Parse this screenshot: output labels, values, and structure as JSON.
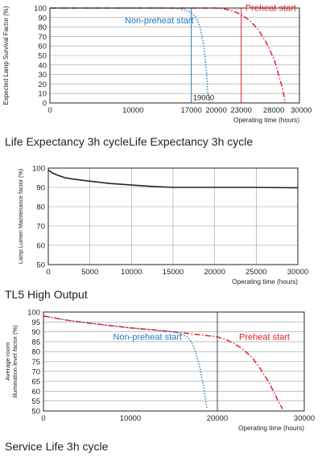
{
  "captions": [
    "Life Expectancy 3h cycleLife Expectancy 3h cycle",
    "TL5 High Output",
    "Service Life 3h cycle"
  ],
  "chart_data": [
    {
      "type": "line",
      "ylabel": "Expected Lamp Survival Factor (%)",
      "xlabel": "Operating time (hours)",
      "xlim": [
        0,
        30000
      ],
      "ylim": [
        0,
        100
      ],
      "xticks": [
        0,
        10000,
        17000,
        20000,
        23000,
        28000,
        30000
      ],
      "yticks": [
        0,
        10,
        20,
        30,
        40,
        50,
        60,
        70,
        80,
        90,
        100
      ],
      "grid": "y",
      "series": [
        {
          "name": "Non-preheat start",
          "color": "#1f78c1",
          "style": "dotted",
          "x": [
            0,
            14000,
            15500,
            16500,
            17000,
            17500,
            18000,
            18500,
            18800,
            19000,
            19300
          ],
          "y": [
            100,
            100,
            99.5,
            97,
            95,
            91,
            82,
            60,
            35,
            10,
            0
          ]
        },
        {
          "name": "Preheat start",
          "color": "#e0202a",
          "style": "dashdot",
          "x": [
            0,
            20000,
            21000,
            22000,
            23000,
            24000,
            25000,
            26000,
            27000,
            28000,
            28300
          ],
          "y": [
            100,
            100,
            99,
            97,
            93,
            87,
            78,
            64,
            45,
            14,
            0
          ]
        }
      ],
      "annotations": [
        {
          "text": "Non-preheat start",
          "color": "#1f78c1",
          "x": 9000,
          "y": 84
        },
        {
          "text": "Preheat start",
          "color": "#e0202a",
          "x": 23500,
          "y": 97
        },
        {
          "text": "19000",
          "color": "#222222",
          "x": 17200,
          "y": 3
        }
      ],
      "reference_lines": [
        {
          "x": 17000,
          "color": "#1f78c1"
        },
        {
          "x": 23000,
          "color": "#e0202a"
        }
      ]
    },
    {
      "type": "line",
      "ylabel": "Lamp Lumen Maintenance factor (%)",
      "xlabel": "Operating time (hours)",
      "xlim": [
        0,
        30000
      ],
      "ylim": [
        50,
        100
      ],
      "xticks": [
        0,
        5000,
        10000,
        15000,
        20000,
        25000,
        30000
      ],
      "yticks": [
        50,
        60,
        70,
        80,
        90,
        100
      ],
      "grid": "both",
      "series": [
        {
          "color": "#222222",
          "style": "solid",
          "x": [
            0,
            500,
            1000,
            2000,
            3000,
            5000,
            7500,
            10000,
            12500,
            15000,
            17500,
            20000,
            25000,
            30000
          ],
          "y": [
            99,
            97.5,
            96.5,
            95,
            94.3,
            93.2,
            92,
            91.2,
            90.5,
            90,
            90,
            90,
            90,
            89.8
          ]
        }
      ]
    },
    {
      "type": "line",
      "ylabel": "Average room illumination level factor (%)",
      "xlabel": "Operating time (hours)",
      "xlim": [
        0,
        30000
      ],
      "ylim": [
        50,
        100
      ],
      "xticks": [
        0,
        10000,
        20000,
        30000
      ],
      "yticks": [
        50,
        55,
        60,
        65,
        70,
        75,
        80,
        85,
        90,
        95,
        100
      ],
      "grid": "y",
      "series": [
        {
          "name": "Non-preheat start",
          "color": "#1f78c1",
          "style": "dotted",
          "x": [
            0,
            2500,
            5000,
            10000,
            14000,
            15500,
            16500,
            17000,
            17500,
            18000,
            18500,
            18800
          ],
          "y": [
            98,
            96,
            94.5,
            92,
            90.5,
            89.5,
            87.5,
            85,
            80,
            72,
            60,
            51
          ]
        },
        {
          "name": "Preheat start",
          "color": "#e0202a",
          "style": "dashdot",
          "x": [
            0,
            2500,
            5000,
            10000,
            15000,
            20000,
            21000,
            22000,
            23000,
            24000,
            25000,
            26000,
            27000,
            27500
          ],
          "y": [
            98,
            96,
            94.5,
            92,
            90,
            87.5,
            86,
            84,
            81,
            77,
            71,
            64,
            55,
            51
          ]
        }
      ],
      "annotations": [
        {
          "text": "Non-preheat start",
          "color": "#1f78c1",
          "x": 8000,
          "y": 86
        },
        {
          "text": "Preheat start",
          "color": "#e0202a",
          "x": 22500,
          "y": 86
        }
      ],
      "reference_lines": [
        {
          "x": 20000,
          "color": "#444444"
        }
      ]
    }
  ]
}
